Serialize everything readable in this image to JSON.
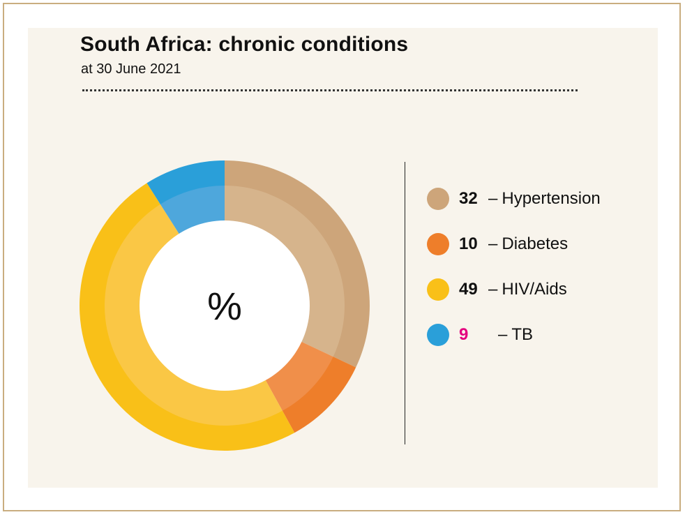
{
  "chart_data": {
    "type": "pie",
    "variant": "donut",
    "title": "South Africa: chronic conditions",
    "subtitle": "at 30 June 2021",
    "center_label": "%",
    "unit": "%",
    "categories": [
      "Hypertension",
      "Diabetes",
      "HIV/Aids",
      "TB"
    ],
    "values": [
      32,
      10,
      49,
      9
    ],
    "colors": [
      "#cda57a",
      "#ee7e2a",
      "#f9c018",
      "#2a9fd9"
    ],
    "inner_colors": [
      "#d6b48c",
      "#f08f4a",
      "#fac745",
      "#4ea7dc"
    ],
    "legend": [
      {
        "value": "32",
        "dash": "–",
        "label": "Hypertension",
        "color": "#cda57a",
        "highlight": false
      },
      {
        "value": "10",
        "dash": "–",
        "label": "Diabetes",
        "color": "#ee7e2a",
        "highlight": false
      },
      {
        "value": "49",
        "dash": "–",
        "label": "HIV/Aids",
        "color": "#f9c018",
        "highlight": false
      },
      {
        "value": "9",
        "dash": "–",
        "label": "TB",
        "color": "#2a9fd9",
        "highlight": true
      }
    ],
    "legend_position": "right"
  }
}
